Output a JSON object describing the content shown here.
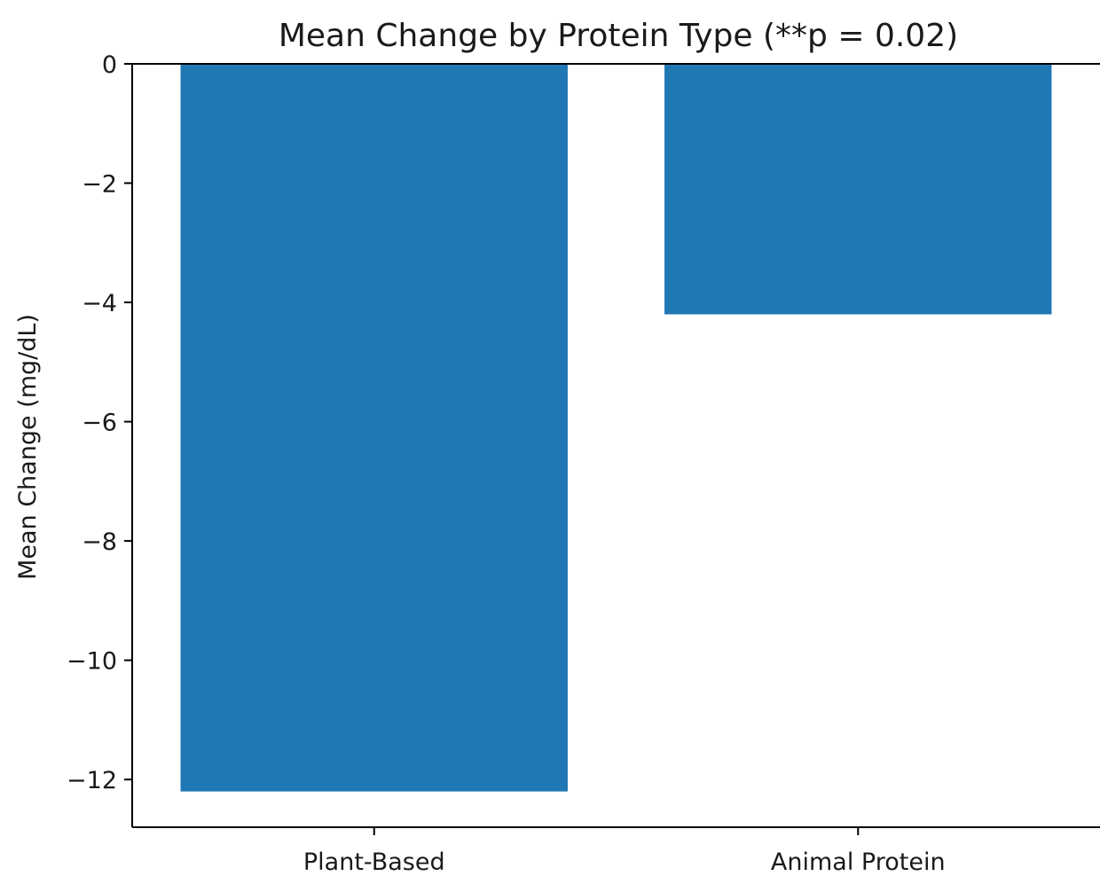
{
  "chart_data": {
    "type": "bar",
    "title": "Mean Change by Protein Type (**p = 0.02)",
    "xlabel": "",
    "ylabel": "Mean Change (mg/dL)",
    "categories": [
      "Plant-Based",
      "Animal Protein"
    ],
    "values": [
      -12.2,
      -4.2
    ],
    "ylim": [
      -12.8,
      0
    ],
    "yticks": [
      0,
      -2,
      -4,
      -6,
      -8,
      -10,
      -12
    ],
    "ytick_labels": [
      "0",
      "−2",
      "−4",
      "−6",
      "−8",
      "−10",
      "−12"
    ],
    "bar_color": "#1f77b4",
    "grid": false,
    "legend": "none"
  }
}
